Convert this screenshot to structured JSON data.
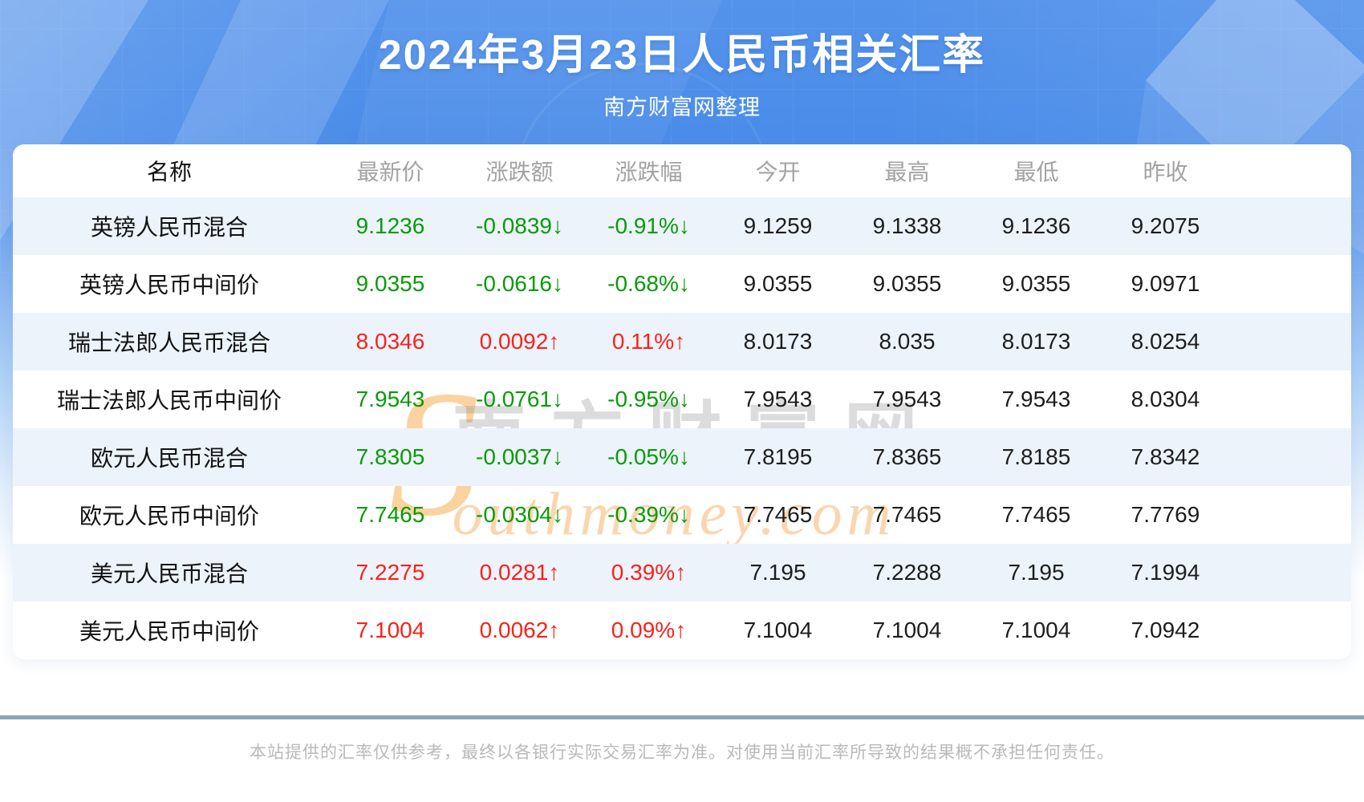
{
  "header": {
    "title": "2024年3月23日人民币相关汇率",
    "subtitle": "南方财富网整理"
  },
  "chart_data": {
    "type": "table",
    "title": "2024年3月23日人民币相关汇率",
    "subtitle": "南方财富网整理",
    "columns": [
      "名称",
      "最新价",
      "涨跌额",
      "涨跌幅",
      "今开",
      "最高",
      "最低",
      "昨收"
    ],
    "rows": [
      {
        "direction": "down",
        "cells": [
          "英镑人民币混合",
          "9.1236",
          "-0.0839↓",
          "-0.91%↓",
          "9.1259",
          "9.1338",
          "9.1236",
          "9.2075"
        ]
      },
      {
        "direction": "down",
        "cells": [
          "英镑人民币中间价",
          "9.0355",
          "-0.0616↓",
          "-0.68%↓",
          "9.0355",
          "9.0355",
          "9.0355",
          "9.0971"
        ]
      },
      {
        "direction": "up",
        "cells": [
          "瑞士法郎人民币混合",
          "8.0346",
          "0.0092↑",
          "0.11%↑",
          "8.0173",
          "8.035",
          "8.0173",
          "8.0254"
        ]
      },
      {
        "direction": "down",
        "cells": [
          "瑞士法郎人民币中间价",
          "7.9543",
          "-0.0761↓",
          "-0.95%↓",
          "7.9543",
          "7.9543",
          "7.9543",
          "8.0304"
        ]
      },
      {
        "direction": "down",
        "cells": [
          "欧元人民币混合",
          "7.8305",
          "-0.0037↓",
          "-0.05%↓",
          "7.8195",
          "7.8365",
          "7.8185",
          "7.8342"
        ]
      },
      {
        "direction": "down",
        "cells": [
          "欧元人民币中间价",
          "7.7465",
          "-0.0304↓",
          "-0.39%↓",
          "7.7465",
          "7.7465",
          "7.7465",
          "7.7769"
        ]
      },
      {
        "direction": "up",
        "cells": [
          "美元人民币混合",
          "7.2275",
          "0.0281↑",
          "0.39%↑",
          "7.195",
          "7.2288",
          "7.195",
          "7.1994"
        ]
      },
      {
        "direction": "up",
        "cells": [
          "美元人民币中间价",
          "7.1004",
          "0.0062↑",
          "0.09%↑",
          "7.1004",
          "7.1004",
          "7.1004",
          "7.0942"
        ]
      }
    ],
    "layout": {
      "striped_rows": "odd data rows light blue",
      "value_color_rule": "up = red, down = green"
    }
  },
  "watermark": {
    "s_letter": "S",
    "cn_text": "南方财富网",
    "en_text": "outhmoney.com"
  },
  "footer": {
    "disclaimer": "本站提供的汇率仅供参考，最终以各银行实际交易汇率为准。对使用当前汇率所导致的结果概不承担任何责任。"
  },
  "colors": {
    "banner_blue": "#4a8ce9",
    "up_red": "#fa2119",
    "down_green": "#089b08",
    "stripe_blue": "#edf3fb",
    "divider_gray_blue": "#8ba2bc",
    "header_text_gray": "#a3a3a3",
    "footer_text_gray": "#b9b9b9"
  }
}
